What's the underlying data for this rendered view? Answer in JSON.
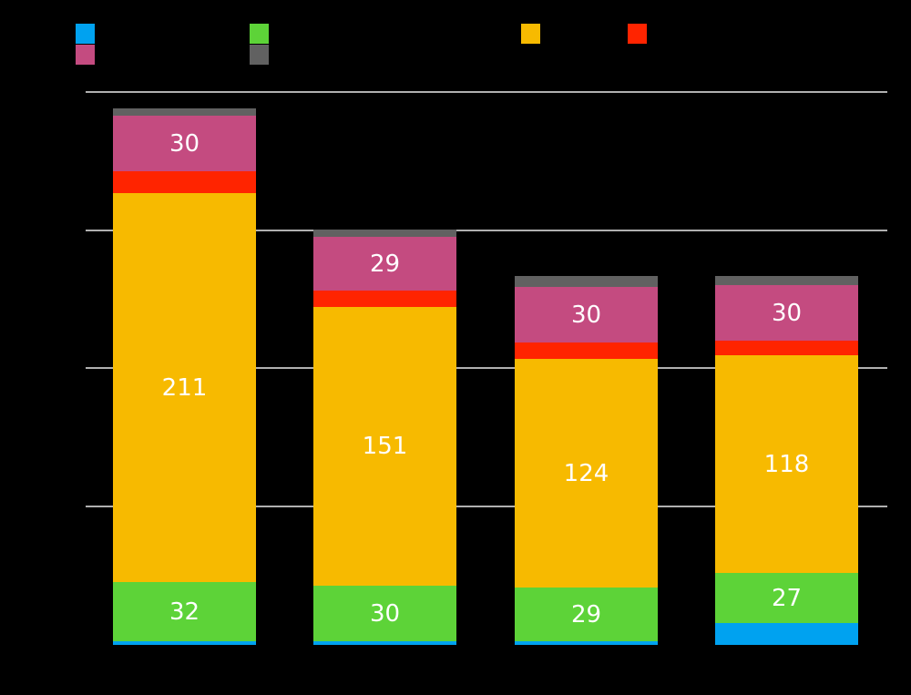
{
  "figure": {
    "background_color": "#000000",
    "text_color_note": "Title, axis labels, tick labels, category labels and legend labels are rendered black-on-black and are not visible in the pixels; only swatches, gridlines, bars and white data labels are visible.",
    "label_text_color": "#FFFFFF",
    "grid_color": "#B0B0B0"
  },
  "legend": {
    "labels_visible": false,
    "items": [
      {
        "name": "blue",
        "color": "#00A2F0",
        "row": 0,
        "x": 83
      },
      {
        "name": "green",
        "color": "#5DD338",
        "row": 0,
        "x": 274
      },
      {
        "name": "yellow",
        "color": "#F7BA00",
        "row": 0,
        "x": 572
      },
      {
        "name": "red",
        "color": "#FF2400",
        "row": 0,
        "x": 689
      },
      {
        "name": "magenta",
        "color": "#C44B80",
        "row": 1,
        "x": 83
      },
      {
        "name": "gray",
        "color": "#616161",
        "row": 1,
        "x": 274
      }
    ]
  },
  "chart_data": {
    "type": "bar",
    "stacked": true,
    "title": "",
    "xlabel": "",
    "ylabel": "",
    "categories": [
      "",
      "",
      "",
      ""
    ],
    "categories_visible": false,
    "ylim": [
      0,
      300
    ],
    "gridline_values": [
      75,
      150,
      225,
      300
    ],
    "gridline_values_estimated": true,
    "legend_position": "top",
    "series": [
      {
        "name": "blue",
        "color": "#00A2F0",
        "values": [
          2,
          2,
          2,
          12
        ],
        "values_estimated": true,
        "labels_shown": false
      },
      {
        "name": "green",
        "color": "#5DD338",
        "values": [
          32,
          30,
          29,
          27
        ],
        "values_estimated": false,
        "labels_shown": true
      },
      {
        "name": "yellow",
        "color": "#F7BA00",
        "values": [
          211,
          151,
          124,
          118
        ],
        "values_estimated": false,
        "labels_shown": true
      },
      {
        "name": "red",
        "color": "#FF2400",
        "values": [
          12,
          9,
          9,
          8
        ],
        "values_estimated": true,
        "labels_shown": false
      },
      {
        "name": "magenta",
        "color": "#C44B80",
        "values": [
          30,
          29,
          30,
          30
        ],
        "values_estimated": false,
        "labels_shown": true
      },
      {
        "name": "gray",
        "color": "#616161",
        "values": [
          4,
          4,
          6,
          5
        ],
        "values_estimated": true,
        "labels_shown": false
      }
    ],
    "visible_data_labels": {
      "green": [
        32,
        30,
        29,
        27
      ],
      "yellow": [
        211,
        151,
        124,
        118
      ],
      "magenta": [
        30,
        29,
        30,
        30
      ]
    }
  }
}
